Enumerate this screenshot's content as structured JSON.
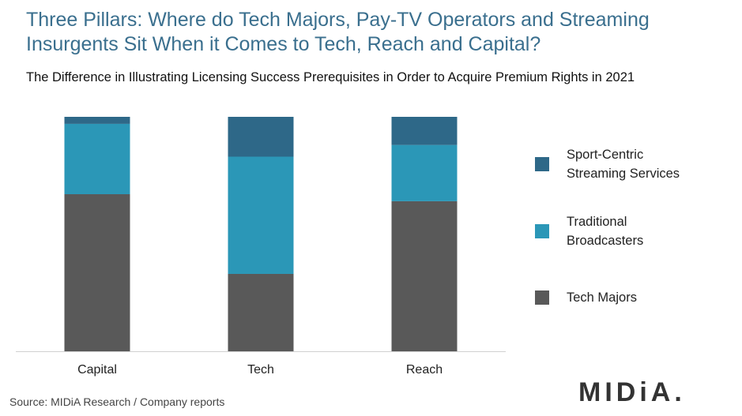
{
  "chart_data": {
    "type": "stacked_bar",
    "title": "Three Pillars: Where do Tech Majors, Pay-TV Operators and Streaming Insurgents Sit When it Comes to Tech, Reach and Capital?",
    "subtitle": "The Difference in Illustrating Licensing Success Prerequisites in Order to Acquire Premium Rights in 2021",
    "categories": [
      "Capital",
      "Tech",
      "Reach"
    ],
    "series": [
      {
        "name": "Tech Majors",
        "color": "#595959",
        "values": [
          67,
          33,
          64
        ]
      },
      {
        "name": "Traditional Broadcasters",
        "color": "#2b97b7",
        "values": [
          30,
          50,
          24
        ]
      },
      {
        "name": "Sport-Centric Streaming Services",
        "color": "#2e6888",
        "values": [
          3,
          17,
          12
        ]
      }
    ],
    "legend": "right",
    "source": "Source: MIDiA Research / Company reports",
    "logo": "MIDiA."
  }
}
